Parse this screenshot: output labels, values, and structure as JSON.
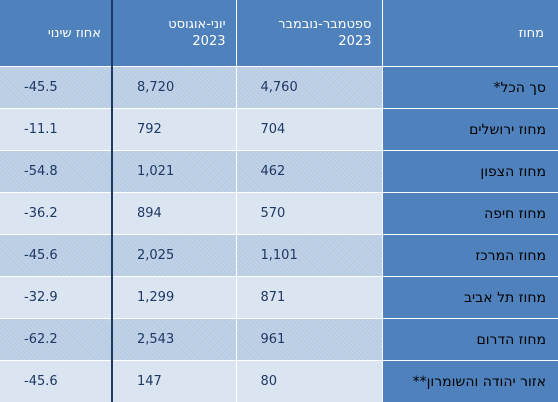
{
  "headers": {
    "district": "מחוז",
    "sep_nov": [
      "ספטמבר-נובמבר",
      "2023"
    ],
    "jun_aug": [
      "יוני-אוגוסט",
      "2023"
    ],
    "change": "אחוז שינוי"
  },
  "rows": [
    {
      "district": "סך הכל*",
      "sep_nov": "4,760",
      "jun_aug": "8,720",
      "change": "45.5-"
    },
    {
      "district": "מחוז ירושלים",
      "sep_nov": "704",
      "jun_aug": "792",
      "change": "11.1-"
    },
    {
      "district": "מחוז הצפון",
      "sep_nov": "462",
      "jun_aug": "1,021",
      "change": "54.8-"
    },
    {
      "district": "מחוז חיפה",
      "sep_nov": "570",
      "jun_aug": "894",
      "change": "36.2-"
    },
    {
      "district": "מחוז המרכז",
      "sep_nov": "1,101",
      "jun_aug": "2,025",
      "change": "45.6-"
    },
    {
      "district": "מחוז תל אביב",
      "sep_nov": "871",
      "jun_aug": "1,299",
      "change": "32.9-"
    },
    {
      "district": "מחוז הדרום",
      "sep_nov": "961",
      "jun_aug": "2,543",
      "change": "62.2-"
    },
    {
      "district": "אזור יהודה והשומרון**",
      "sep_nov": "80",
      "jun_aug": "147",
      "change": "45.6-"
    }
  ]
}
